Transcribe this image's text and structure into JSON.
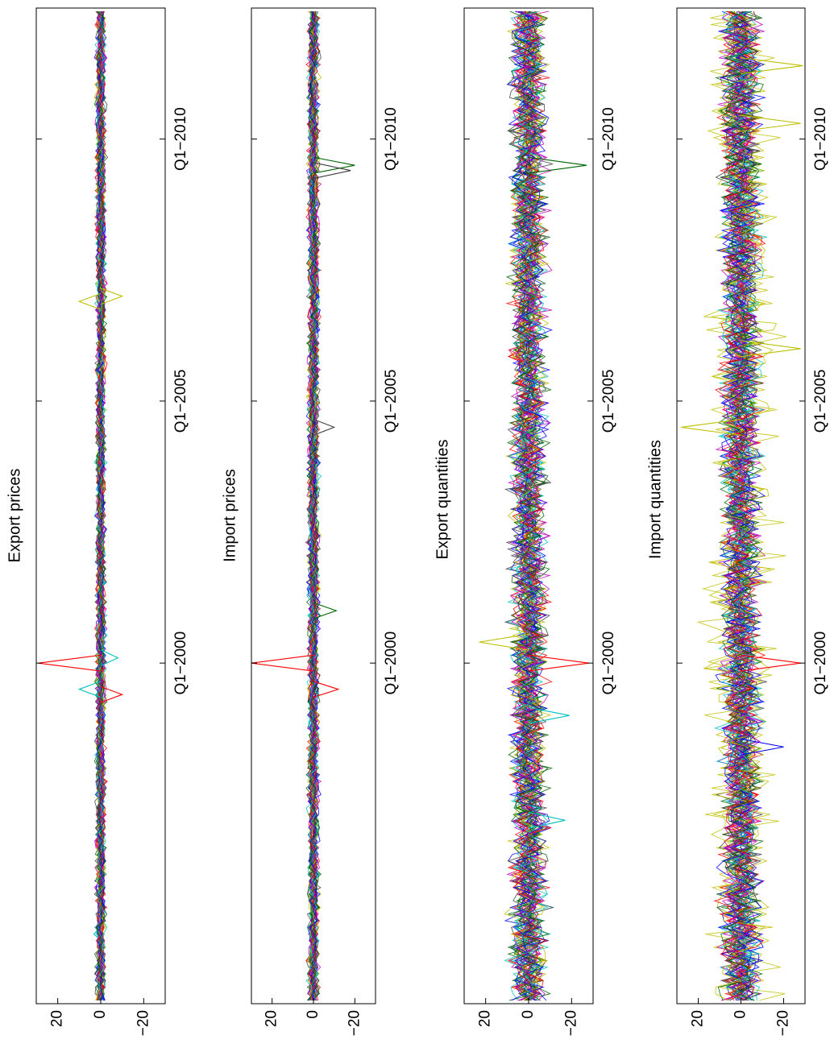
{
  "chart_data": [
    {
      "type": "line",
      "title": "Export prices",
      "x_tick_labels": [
        "Q1−2000",
        "Q1−2005",
        "Q1−2010"
      ],
      "y_tick_labels": [
        "20",
        "0",
        "−20"
      ],
      "y_ticks": [
        20,
        0,
        -20
      ],
      "ylim": [
        -30,
        30
      ],
      "x_range_years": [
        1993.5,
        2012.5
      ],
      "x_ticks_years": [
        2000,
        2005,
        2010
      ],
      "noise_amplitude": 2.5,
      "colors": [
        "#ff0000",
        "#0000ff",
        "#00bfbf",
        "#bf00bf",
        "#006400",
        "#bfbf00",
        "#404040"
      ],
      "series_count": 40,
      "spikes": [
        {
          "year": 2000.0,
          "value": 29,
          "color": "#ff0000"
        },
        {
          "year": 1999.4,
          "value": -10,
          "color": "#ff0000"
        },
        {
          "year": 1999.5,
          "value": 10,
          "color": "#00bfbf"
        },
        {
          "year": 2000.1,
          "value": -8,
          "color": "#00bfbf"
        },
        {
          "year": 2006.9,
          "value": 10,
          "color": "#bfbf00"
        },
        {
          "year": 2007.0,
          "value": -10,
          "color": "#bfbf00"
        }
      ]
    },
    {
      "type": "line",
      "title": "Import prices",
      "x_tick_labels": [
        "Q1−2000",
        "Q1−2005",
        "Q1−2010"
      ],
      "y_tick_labels": [
        "20",
        "0",
        "−20"
      ],
      "y_ticks": [
        20,
        0,
        -20
      ],
      "ylim": [
        -30,
        30
      ],
      "x_range_years": [
        1993.5,
        2012.5
      ],
      "x_ticks_years": [
        2000,
        2005,
        2010
      ],
      "noise_amplitude": 3,
      "colors": [
        "#ff0000",
        "#0000ff",
        "#00bfbf",
        "#bf00bf",
        "#006400",
        "#bfbf00",
        "#404040"
      ],
      "series_count": 40,
      "spikes": [
        {
          "year": 2000.0,
          "value": 30,
          "color": "#ff0000"
        },
        {
          "year": 1999.5,
          "value": -12,
          "color": "#ff0000"
        },
        {
          "year": 2009.5,
          "value": -20,
          "color": "#006400"
        },
        {
          "year": 2009.4,
          "value": -18,
          "color": "#404040"
        },
        {
          "year": 2001.0,
          "value": -11,
          "color": "#006400"
        },
        {
          "year": 2004.5,
          "value": -10,
          "color": "#404040"
        }
      ]
    },
    {
      "type": "line",
      "title": "Export quantities",
      "x_tick_labels": [
        "Q1−2000",
        "Q1−2005",
        "Q1−2010"
      ],
      "y_tick_labels": [
        "20",
        "0",
        "−20"
      ],
      "y_ticks": [
        20,
        0,
        -20
      ],
      "ylim": [
        -30,
        30
      ],
      "x_range_years": [
        1993.5,
        2012.5
      ],
      "x_ticks_years": [
        2000,
        2005,
        2010
      ],
      "noise_amplitude": 9,
      "colors": [
        "#ff0000",
        "#0000ff",
        "#00bfbf",
        "#bf00bf",
        "#006400",
        "#bfbf00",
        "#404040"
      ],
      "series_count": 40,
      "spikes": [
        {
          "year": 2000.0,
          "value": -28,
          "color": "#ff0000"
        },
        {
          "year": 2009.5,
          "value": -27,
          "color": "#006400"
        },
        {
          "year": 1999.0,
          "value": -19,
          "color": "#00bfbf"
        },
        {
          "year": 1997.0,
          "value": -17,
          "color": "#00bfbf"
        },
        {
          "year": 2000.4,
          "value": 23,
          "color": "#bfbf00"
        }
      ]
    },
    {
      "type": "line",
      "title": "Import quantities",
      "x_tick_labels": [
        "Q1−2000",
        "Q1−2005",
        "Q1−2010"
      ],
      "y_tick_labels": [
        "20",
        "0",
        "−20"
      ],
      "y_ticks": [
        20,
        0,
        -20
      ],
      "ylim": [
        -30,
        30
      ],
      "x_range_years": [
        1993.5,
        2012.5
      ],
      "x_ticks_years": [
        2000,
        2005,
        2010
      ],
      "noise_amplitude": 10,
      "colors": [
        "#ff0000",
        "#0000ff",
        "#00bfbf",
        "#bf00bf",
        "#006400",
        "#bfbf00",
        "#404040"
      ],
      "series_count": 40,
      "spikes": [
        {
          "year": 2000.0,
          "value": -28,
          "color": "#ff0000"
        },
        {
          "year": 1998.4,
          "value": -20,
          "color": "#0000ff"
        },
        {
          "year": 2004.5,
          "value": 28,
          "color": "#bfbf00"
        },
        {
          "year": 2006.0,
          "value": -28,
          "color": "#bfbf00"
        },
        {
          "year": 2010.3,
          "value": -28,
          "color": "#bfbf00"
        },
        {
          "year": 2011.4,
          "value": -29,
          "color": "#bfbf00"
        }
      ]
    }
  ]
}
